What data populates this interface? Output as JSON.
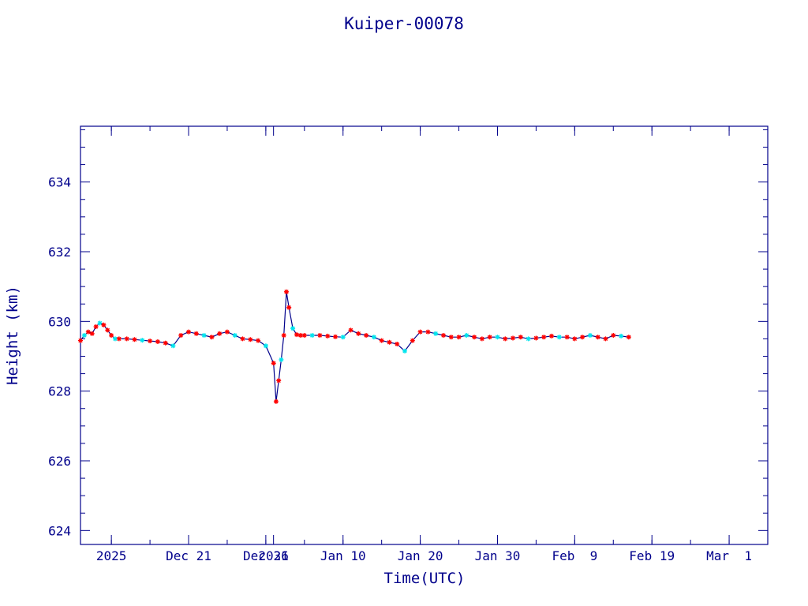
{
  "chart_data": {
    "type": "scatter",
    "title": "Kuiper-00078",
    "xlabel": "Time(UTC)",
    "ylabel": "Height (km)",
    "x_unit": "date",
    "xlim": [
      "2025-12-07",
      "2026-03-06"
    ],
    "ylim": [
      623.6,
      635.6
    ],
    "grid": false,
    "y_ticks": [
      624,
      626,
      628,
      630,
      632,
      634
    ],
    "x_ticks": [
      {
        "date": "2025-12-11",
        "label": "2025"
      },
      {
        "date": "2025-12-21",
        "label": "Dec 21"
      },
      {
        "date": "2025-12-31",
        "label": "Dec 31"
      },
      {
        "date": "2026-01-01",
        "label": "2026"
      },
      {
        "date": "2026-01-10",
        "label": "Jan 10"
      },
      {
        "date": "2026-01-20",
        "label": "Jan 20"
      },
      {
        "date": "2026-01-30",
        "label": "Jan 30"
      },
      {
        "date": "2026-02-09",
        "label": "Feb  9"
      },
      {
        "date": "2026-02-19",
        "label": "Feb 19"
      },
      {
        "date": "2026-03-01",
        "label": "Mar  1"
      }
    ],
    "colors": {
      "axis": "#00008b",
      "line": "#00008b",
      "marker_red": "#ff0000",
      "marker_cyan": "#00e5ee"
    },
    "series": [
      {
        "x": [
          "2025-12-07",
          "2025-12-07",
          "2025-12-08",
          "2025-12-08",
          "2025-12-09",
          "2025-12-09",
          "2025-12-10",
          "2025-12-10",
          "2025-12-11",
          "2025-12-11",
          "2025-12-12",
          "2025-12-13",
          "2025-12-14",
          "2025-12-15",
          "2025-12-16",
          "2025-12-17",
          "2025-12-18",
          "2025-12-19",
          "2025-12-20",
          "2025-12-21",
          "2025-12-22",
          "2025-12-23",
          "2025-12-24",
          "2025-12-25",
          "2025-12-26",
          "2025-12-27",
          "2025-12-28",
          "2025-12-29",
          "2025-12-30",
          "2025-12-31",
          "2026-01-01",
          "2026-01-01",
          "2026-01-01",
          "2026-01-02",
          "2026-01-02",
          "2026-01-02",
          "2026-01-03",
          "2026-01-03",
          "2026-01-04",
          "2026-01-04",
          "2026-01-05",
          "2026-01-06",
          "2026-01-07",
          "2026-01-08",
          "2026-01-09",
          "2026-01-10",
          "2026-01-11",
          "2026-01-12",
          "2026-01-13",
          "2026-01-14",
          "2026-01-15",
          "2026-01-16",
          "2026-01-17",
          "2026-01-18",
          "2026-01-19",
          "2026-01-20",
          "2026-01-21",
          "2026-01-22",
          "2026-01-23",
          "2026-01-24",
          "2026-01-25",
          "2026-01-26",
          "2026-01-27",
          "2026-01-28",
          "2026-01-29",
          "2026-01-30",
          "2026-01-31",
          "2026-02-01",
          "2026-02-02",
          "2026-02-03",
          "2026-02-04",
          "2026-02-05",
          "2026-02-06",
          "2026-02-07",
          "2026-02-08",
          "2026-02-09",
          "2026-02-10",
          "2026-02-11",
          "2026-02-12",
          "2026-02-13",
          "2026-02-14",
          "2026-02-15",
          "2026-02-16"
        ],
        "y": [
          629.45,
          629.6,
          629.7,
          629.65,
          629.85,
          629.95,
          629.9,
          629.75,
          629.6,
          629.5,
          629.5,
          629.5,
          629.48,
          629.46,
          629.44,
          629.42,
          629.38,
          629.3,
          629.6,
          629.7,
          629.65,
          629.6,
          629.55,
          629.65,
          629.7,
          629.6,
          629.5,
          629.48,
          629.45,
          629.3,
          628.8,
          627.7,
          628.3,
          628.9,
          629.6,
          630.85,
          630.4,
          629.8,
          629.62,
          629.6,
          629.6,
          629.6,
          629.6,
          629.58,
          629.56,
          629.55,
          629.75,
          629.65,
          629.6,
          629.55,
          629.45,
          629.4,
          629.35,
          629.15,
          629.45,
          629.7,
          629.7,
          629.65,
          629.6,
          629.55,
          629.55,
          629.6,
          629.55,
          629.5,
          629.55,
          629.55,
          629.5,
          629.52,
          629.55,
          629.5,
          629.52,
          629.55,
          629.58,
          629.55,
          629.55,
          629.5,
          629.55,
          629.6,
          629.55,
          629.5,
          629.6,
          629.58,
          629.55
        ]
      }
    ]
  }
}
